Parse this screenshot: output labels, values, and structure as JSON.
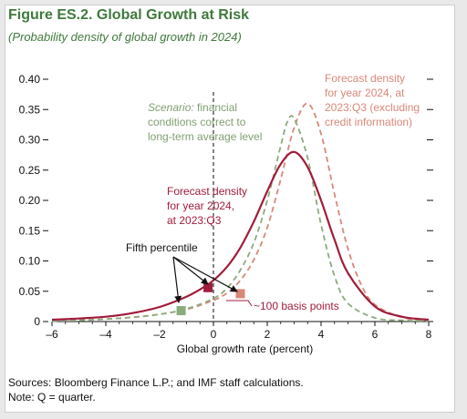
{
  "figure": {
    "title": "Figure ES.2. Global Growth at Risk",
    "subtitle": "(Probability density of global growth in 2024)"
  },
  "notes": {
    "source": "Sources: Bloomberg Finance L.P.; and IMF staff calculations.",
    "note": "Note: Q = quarter."
  },
  "annotations": {
    "scenario": [
      "Scenario: financial",
      "conditions correct to",
      "long-term average level"
    ],
    "scenario_italic_word": "Scenario:",
    "forecast_excl": [
      "Forecast density",
      "for year 2024, at",
      "2023:Q3 (excluding",
      "credit information)"
    ],
    "forecast": [
      "Forecast density",
      "for year 2024,",
      "at 2023:Q3"
    ],
    "fifth_percentile": "Fifth percentile",
    "basis_points": "~100 basis points"
  },
  "colors": {
    "title_green": "#3f7a3c",
    "forecast_red": "#a11c3b",
    "excl_salmon": "#d98778",
    "scenario_green": "#8bab7c"
  },
  "chart_data": {
    "type": "line",
    "title": "Figure ES.2. Global Growth at Risk",
    "subtitle": "(Probability density of global growth in 2024)",
    "xlabel": "Global growth rate (percent)",
    "ylabel": "",
    "xlim": [
      -6,
      8
    ],
    "ylim": [
      0,
      0.4
    ],
    "xticks": [
      -6,
      -4,
      -2,
      0,
      2,
      4,
      6,
      8
    ],
    "xtick_labels": [
      "–6",
      "–4",
      "–2",
      "0",
      "2",
      "4",
      "6",
      "8"
    ],
    "yticks": [
      0,
      0.05,
      0.1,
      0.15,
      0.2,
      0.25,
      0.3,
      0.35,
      0.4
    ],
    "ytick_labels": [
      "0",
      "0.05",
      "0.10",
      "0.15",
      "0.20",
      "0.25",
      "0.30",
      "0.35",
      "0.40"
    ],
    "grid": false,
    "vertical_reference_line_x": 0,
    "series": [
      {
        "style": "solid",
        "color": "#a11c3b",
        "x": [
          -6,
          -5,
          -4,
          -3,
          -2,
          -1,
          -0.5,
          0,
          0.5,
          1,
          1.5,
          2,
          2.5,
          3,
          3.5,
          4,
          4.5,
          5,
          6,
          7,
          8
        ],
        "y": [
          0.003,
          0.005,
          0.008,
          0.014,
          0.024,
          0.041,
          0.053,
          0.068,
          0.09,
          0.122,
          0.165,
          0.215,
          0.26,
          0.28,
          0.255,
          0.2,
          0.135,
          0.08,
          0.025,
          0.008,
          0.003
        ]
      },
      {
        "style": "dashed",
        "color": "#d98778",
        "x": [
          -6,
          -5,
          -4,
          -3,
          -2,
          -1,
          0,
          0.5,
          1,
          1.5,
          2,
          2.5,
          3,
          3.5,
          4,
          4.5,
          5,
          5.5,
          6,
          7,
          8
        ],
        "y": [
          0.001,
          0.002,
          0.004,
          0.007,
          0.012,
          0.02,
          0.035,
          0.047,
          0.068,
          0.102,
          0.155,
          0.235,
          0.32,
          0.36,
          0.31,
          0.21,
          0.12,
          0.06,
          0.028,
          0.007,
          0.002
        ]
      },
      {
        "style": "dashed",
        "color": "#8bab7c",
        "x": [
          -6,
          -5,
          -4,
          -3,
          -2,
          -1,
          0,
          0.5,
          1,
          1.5,
          2,
          2.5,
          2.75,
          3,
          3.5,
          4,
          4.5,
          5,
          6,
          7,
          8
        ],
        "y": [
          0.001,
          0.002,
          0.004,
          0.007,
          0.012,
          0.021,
          0.038,
          0.055,
          0.085,
          0.13,
          0.2,
          0.29,
          0.33,
          0.335,
          0.27,
          0.16,
          0.075,
          0.03,
          0.006,
          0.002,
          0.001
        ]
      }
    ],
    "markers": [
      {
        "x": -1.2,
        "y": 0.018,
        "color": "#8bab7c"
      },
      {
        "x": -0.2,
        "y": 0.056,
        "color": "#a11c3b"
      },
      {
        "x": 1.0,
        "y": 0.046,
        "color": "#d98778"
      }
    ]
  }
}
